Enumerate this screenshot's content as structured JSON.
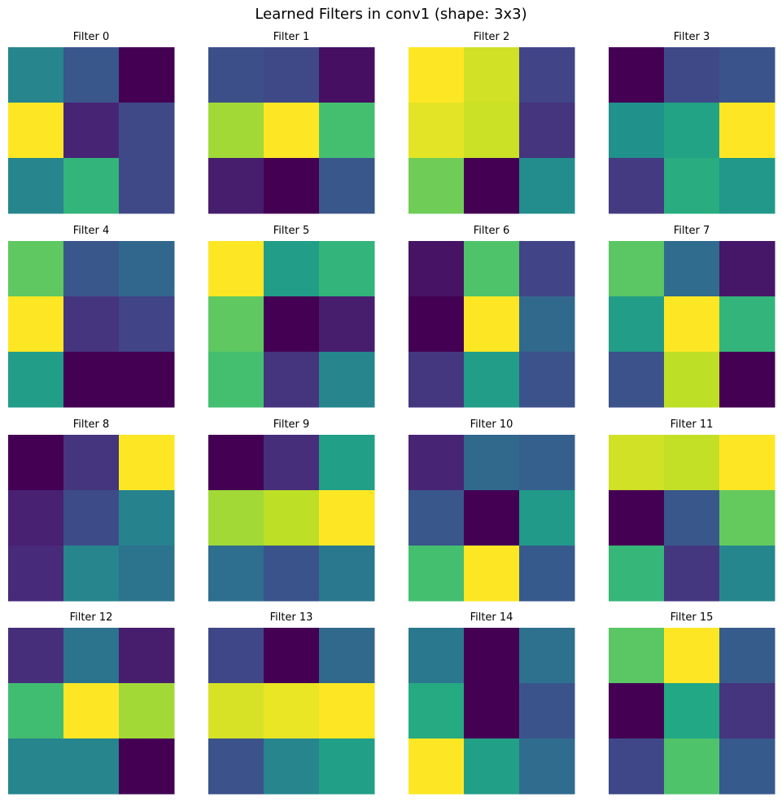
{
  "figure": {
    "title": "Learned Filters in conv1 (shape: 3x3)"
  },
  "chart_data": {
    "type": "heatmap",
    "title": "Learned Filters in conv1 (shape: 3x3)",
    "colormap": "viridis",
    "grid": false,
    "axes_visible": false,
    "layout": "4x4",
    "value_range": [
      0,
      1
    ],
    "filters": [
      {
        "title": "Filter 0",
        "values": [
          [
            0.45,
            0.27,
            0.0
          ],
          [
            1.0,
            0.1,
            0.22
          ],
          [
            0.45,
            0.65,
            0.22
          ]
        ]
      },
      {
        "title": "Filter 1",
        "values": [
          [
            0.24,
            0.22,
            0.04
          ],
          [
            0.86,
            1.0,
            0.7
          ],
          [
            0.08,
            0.0,
            0.27
          ]
        ]
      },
      {
        "title": "Filter 2",
        "values": [
          [
            1.0,
            0.93,
            0.2
          ],
          [
            0.96,
            0.92,
            0.15
          ],
          [
            0.78,
            0.0,
            0.48
          ]
        ]
      },
      {
        "title": "Filter 3",
        "values": [
          [
            0.0,
            0.22,
            0.26
          ],
          [
            0.5,
            0.58,
            1.0
          ],
          [
            0.17,
            0.62,
            0.53
          ]
        ]
      },
      {
        "title": "Filter 4",
        "values": [
          [
            0.75,
            0.27,
            0.33
          ],
          [
            1.0,
            0.15,
            0.2
          ],
          [
            0.55,
            0.0,
            0.0
          ]
        ]
      },
      {
        "title": "Filter 5",
        "values": [
          [
            1.0,
            0.55,
            0.65
          ],
          [
            0.75,
            0.0,
            0.08
          ],
          [
            0.7,
            0.15,
            0.45
          ]
        ]
      },
      {
        "title": "Filter 6",
        "values": [
          [
            0.05,
            0.72,
            0.2
          ],
          [
            0.0,
            1.0,
            0.34
          ],
          [
            0.16,
            0.55,
            0.25
          ]
        ]
      },
      {
        "title": "Filter 7",
        "values": [
          [
            0.74,
            0.35,
            0.06
          ],
          [
            0.55,
            1.0,
            0.65
          ],
          [
            0.25,
            0.9,
            0.0
          ]
        ]
      },
      {
        "title": "Filter 8",
        "values": [
          [
            0.0,
            0.15,
            1.0
          ],
          [
            0.09,
            0.23,
            0.44
          ],
          [
            0.12,
            0.45,
            0.38
          ]
        ]
      },
      {
        "title": "Filter 9",
        "values": [
          [
            0.0,
            0.13,
            0.56
          ],
          [
            0.86,
            0.9,
            1.0
          ],
          [
            0.36,
            0.26,
            0.4
          ]
        ]
      },
      {
        "title": "Filter 10",
        "values": [
          [
            0.1,
            0.34,
            0.3
          ],
          [
            0.27,
            0.0,
            0.54
          ],
          [
            0.7,
            1.0,
            0.28
          ]
        ]
      },
      {
        "title": "Filter 11",
        "values": [
          [
            0.93,
            0.91,
            1.0
          ],
          [
            0.0,
            0.27,
            0.76
          ],
          [
            0.66,
            0.16,
            0.46
          ]
        ]
      },
      {
        "title": "Filter 12",
        "values": [
          [
            0.13,
            0.38,
            0.08
          ],
          [
            0.69,
            1.0,
            0.86
          ],
          [
            0.45,
            0.45,
            0.0
          ]
        ]
      },
      {
        "title": "Filter 13",
        "values": [
          [
            0.21,
            0.0,
            0.34
          ],
          [
            0.94,
            0.97,
            1.0
          ],
          [
            0.25,
            0.45,
            0.56
          ]
        ]
      },
      {
        "title": "Filter 14",
        "values": [
          [
            0.4,
            0.0,
            0.37
          ],
          [
            0.61,
            0.0,
            0.26
          ],
          [
            1.0,
            0.56,
            0.35
          ]
        ]
      },
      {
        "title": "Filter 15",
        "values": [
          [
            0.74,
            1.0,
            0.29
          ],
          [
            0.0,
            0.6,
            0.15
          ],
          [
            0.21,
            0.72,
            0.28
          ]
        ]
      }
    ]
  }
}
